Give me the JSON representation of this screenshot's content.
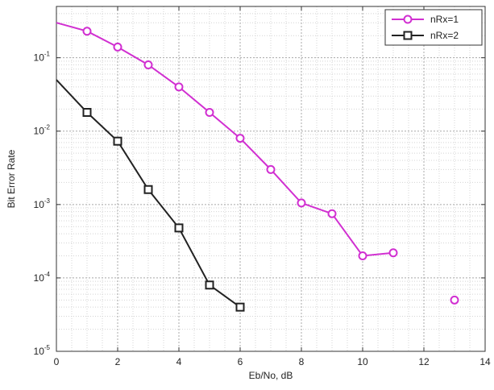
{
  "chart_data": {
    "type": "line",
    "xlabel": "Eb/No, dB",
    "ylabel": "Bit Error Rate",
    "x_scale": "linear",
    "y_scale": "log",
    "xlim": [
      0,
      14
    ],
    "ylim": [
      1e-05,
      0.5
    ],
    "x_ticks": [
      0,
      2,
      4,
      6,
      8,
      10,
      12,
      14
    ],
    "x_tick_labels": [
      "0",
      "2",
      "4",
      "6",
      "8",
      "10",
      "12",
      "14"
    ],
    "y_tick_labels": [
      {
        "base": "10",
        "exp": "-1",
        "value": 0.1
      },
      {
        "base": "10",
        "exp": "-2",
        "value": 0.01
      },
      {
        "base": "10",
        "exp": "-3",
        "value": 0.001
      },
      {
        "base": "10",
        "exp": "-4",
        "value": 0.0001
      },
      {
        "base": "10",
        "exp": "-5",
        "value": 1e-05
      }
    ],
    "grid": true,
    "legend_position": "top-right",
    "series": [
      {
        "name": "nRx=1",
        "color": "#d12fd1",
        "marker": "circle",
        "x": [
          0,
          1,
          2,
          3,
          4,
          5,
          6,
          7,
          8,
          9,
          10,
          11
        ],
        "y": [
          0.3,
          0.23,
          0.14,
          0.08,
          0.04,
          0.018,
          0.008,
          0.003,
          0.00105,
          0.00075,
          0.0002,
          0.00022
        ]
      },
      {
        "name": "",
        "color": "#d12fd1",
        "marker": "circle",
        "connected": false,
        "x": [
          13
        ],
        "y": [
          5e-05
        ]
      },
      {
        "name": "nRx=2",
        "color": "#222222",
        "marker": "square",
        "x": [
          0,
          1,
          2,
          3,
          4,
          5,
          6
        ],
        "y": [
          0.05,
          0.018,
          0.0073,
          0.0016,
          0.00048,
          8e-05,
          4e-05
        ]
      }
    ]
  }
}
